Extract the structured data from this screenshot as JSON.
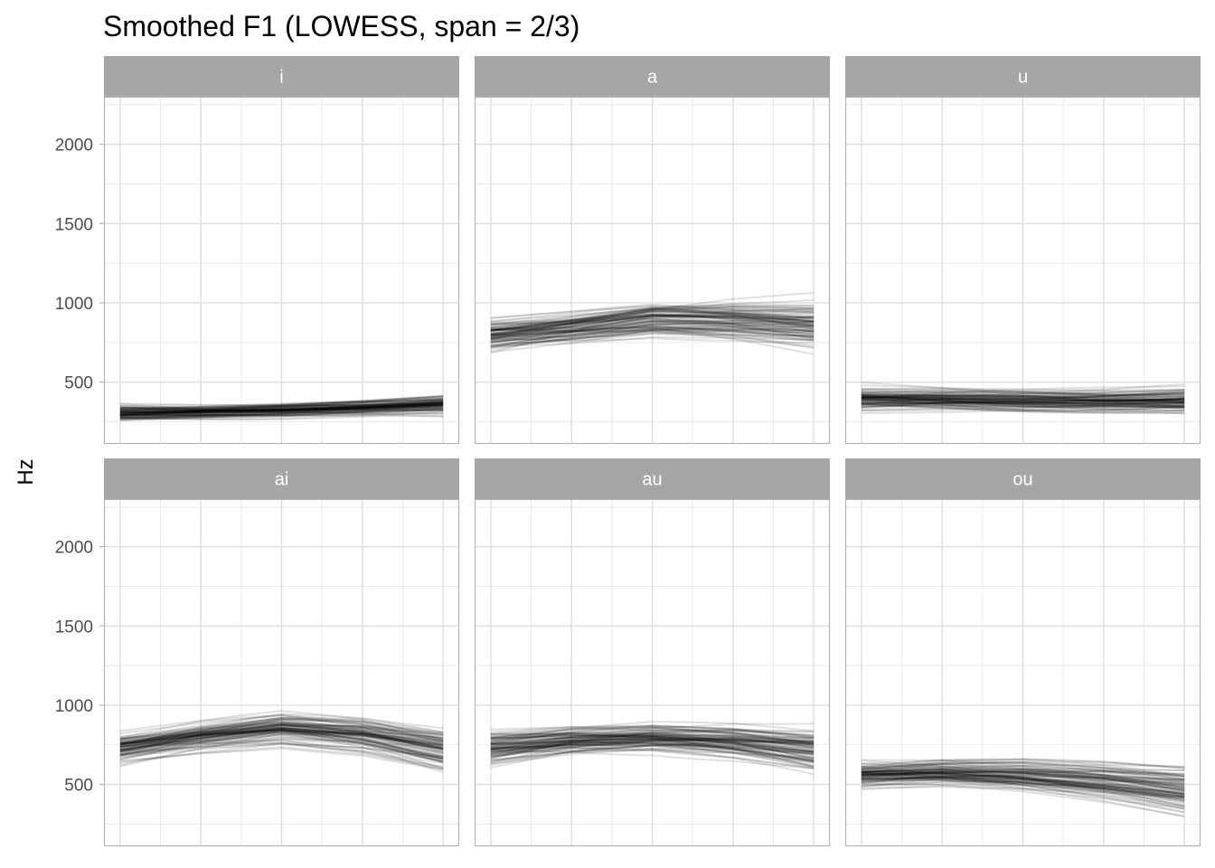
{
  "chart_data": {
    "type": "line",
    "title": "Smoothed F1 (LOWESS, span = 2/3)",
    "ylabel": "Hz",
    "xlabel": "",
    "ylim": [
      110,
      2300
    ],
    "xlim": [
      -0.05,
      1.05
    ],
    "yticks": [
      500,
      1000,
      1500,
      2000
    ],
    "grid": true,
    "legend": "none",
    "line_color": "#000000",
    "line_opacity": 0.12,
    "strip_color": "#a6a6a6",
    "panels": [
      {
        "label": "i",
        "x": [
          0,
          0.25,
          0.5,
          0.75,
          1
        ],
        "mean": [
          305,
          310,
          320,
          335,
          355
        ],
        "spread_start": 30,
        "spread_end": 40
      },
      {
        "label": "a",
        "x": [
          0,
          0.25,
          0.5,
          0.75,
          1
        ],
        "mean": [
          800,
          840,
          890,
          880,
          850
        ],
        "spread_start": 70,
        "spread_end": 110
      },
      {
        "label": "u",
        "x": [
          0,
          0.25,
          0.5,
          0.75,
          1
        ],
        "mean": [
          400,
          395,
          385,
          380,
          380
        ],
        "spread_start": 50,
        "spread_end": 60
      },
      {
        "label": "ai",
        "x": [
          0,
          0.25,
          0.5,
          0.75,
          1
        ],
        "mean": [
          730,
          800,
          850,
          810,
          720
        ],
        "spread_start": 70,
        "spread_end": 100
      },
      {
        "label": "au",
        "x": [
          0,
          0.25,
          0.5,
          0.75,
          1
        ],
        "mean": [
          720,
          770,
          790,
          770,
          720
        ],
        "spread_start": 70,
        "spread_end": 90
      },
      {
        "label": "ou",
        "x": [
          0,
          0.25,
          0.5,
          0.75,
          1
        ],
        "mean": [
          570,
          580,
          560,
          520,
          460
        ],
        "spread_start": 60,
        "spread_end": 110
      }
    ]
  }
}
